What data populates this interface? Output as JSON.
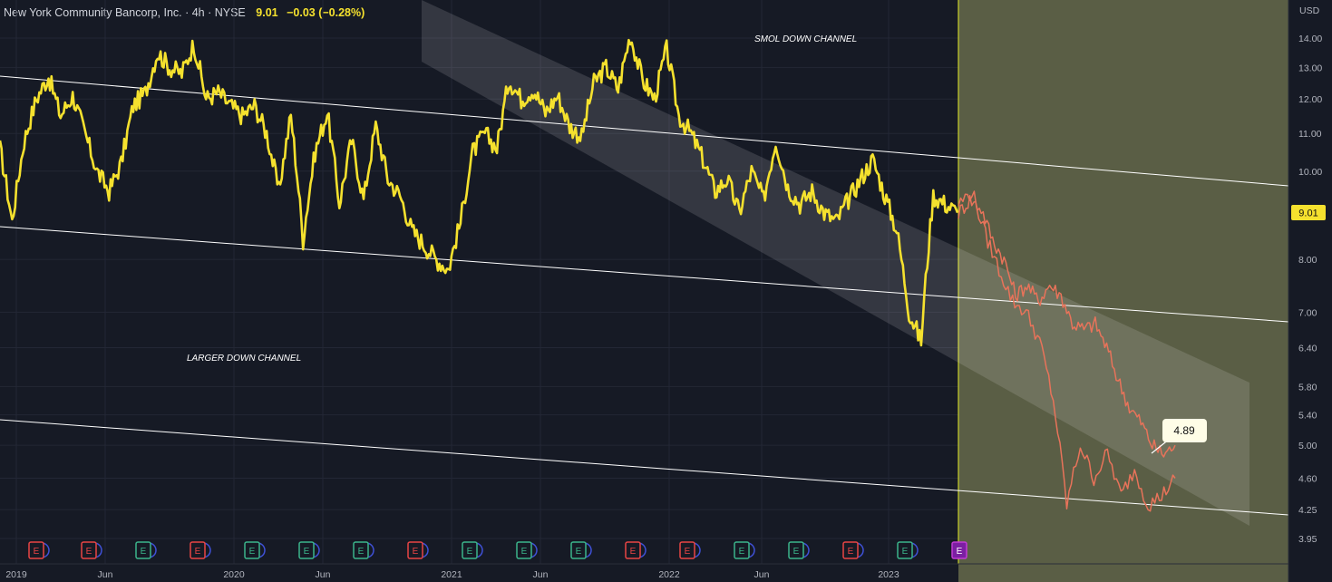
{
  "header": {
    "symbol": "New York Community Bancorp, Inc. · 4h · NYSE",
    "price": "9.01",
    "change": "−0.03 (−0.28%)"
  },
  "currency": "USD",
  "annotations": {
    "smol_channel": "SMOL DOWN CHANNEL",
    "larger_channel": "LARGER DOWN CHANNEL"
  },
  "price_tag": "9.01",
  "projection_label": "4.89",
  "colors": {
    "background": "#161a25",
    "price_line": "#f5e12e",
    "projection_line": "#e8735a",
    "projection_zone": "#5a5e45",
    "channel_fill": "#ffffff"
  },
  "chart_data": {
    "type": "line",
    "yscale": "log",
    "yticks": [
      "14.00",
      "13.00",
      "12.00",
      "11.00",
      "10.00",
      "8.00",
      "7.00",
      "6.40",
      "5.80",
      "5.40",
      "5.00",
      "4.60",
      "4.25",
      "3.95"
    ],
    "xticks": [
      "2019",
      "Jun",
      "2020",
      "Jun",
      "2021",
      "Jun",
      "2022",
      "Jun",
      "2023"
    ],
    "ylim": [
      3.8,
      15.0
    ],
    "earnings_markers": [
      "E",
      "E",
      "E",
      "E",
      "E",
      "E",
      "E",
      "E",
      "E",
      "E",
      "E",
      "E",
      "E",
      "E",
      "E",
      "E",
      "E",
      "E"
    ],
    "series": [
      {
        "values": [
          10.6,
          8.8,
          10.8,
          12.0,
          12.7,
          11.5,
          12.1,
          11.0,
          10.0,
          9.5,
          10.2,
          11.8,
          12.2,
          13.5,
          13.0,
          12.8,
          13.8,
          12.0,
          12.2,
          11.8,
          11.5,
          11.8,
          11.0,
          9.5,
          11.5,
          8.4,
          10.5,
          11.6,
          9.2,
          10.8,
          9.3,
          11.2,
          9.8,
          9.4,
          8.6,
          8.3,
          8.0,
          7.8,
          8.8,
          10.5,
          11.0,
          10.6,
          12.6,
          12.0,
          12.3,
          11.6,
          12.1,
          11.2,
          10.9,
          12.5,
          13.0,
          12.3,
          14.1,
          12.6,
          12.0,
          13.6,
          11.5,
          11.0,
          10.3,
          9.5,
          9.8,
          9.0,
          10.0,
          9.3,
          10.8,
          9.6,
          9.2,
          9.5,
          9.0,
          8.8,
          9.3,
          9.8,
          10.3,
          9.4,
          8.6,
          7.0,
          6.5,
          9.4,
          9.2,
          9.0
        ]
      },
      {
        "values": [
          9.0,
          9.3,
          9.1,
          8.4,
          8.0,
          7.3,
          7.5,
          7.2,
          7.5,
          7.3,
          6.8,
          6.7,
          6.8,
          6.4,
          5.9,
          5.5,
          5.3,
          5.0,
          4.89,
          5.0
        ]
      },
      {
        "values": [
          9.2,
          9.5,
          8.5,
          7.8,
          7.2,
          7.0,
          6.5,
          5.6,
          4.3,
          5.0,
          4.6,
          4.9,
          4.4,
          4.7,
          4.3,
          4.4,
          4.6
        ]
      }
    ]
  }
}
